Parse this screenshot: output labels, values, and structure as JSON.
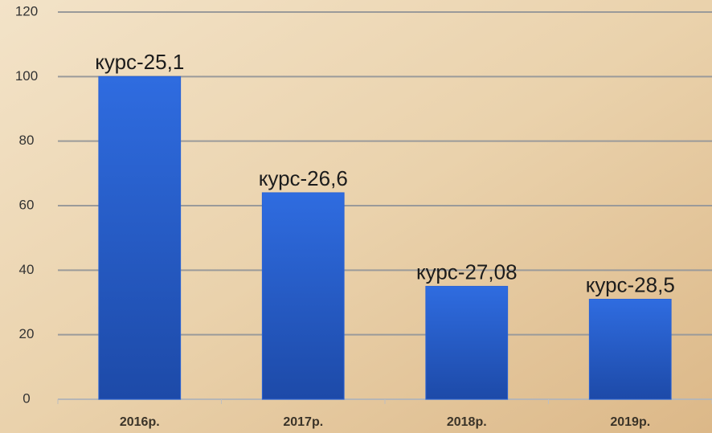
{
  "chart_data": {
    "type": "bar",
    "categories": [
      "2016р.",
      "2017р.",
      "2018р.",
      "2019р."
    ],
    "values": [
      100,
      64,
      35,
      31
    ],
    "annotations": [
      "курс-25,1",
      "курс-26,6",
      "курс-27,08",
      "курс-28,5"
    ],
    "color": "#2a63d6",
    "ylim": [
      0,
      120
    ],
    "yticks": [
      0,
      20,
      40,
      60,
      80,
      100,
      120
    ],
    "grid": true
  }
}
